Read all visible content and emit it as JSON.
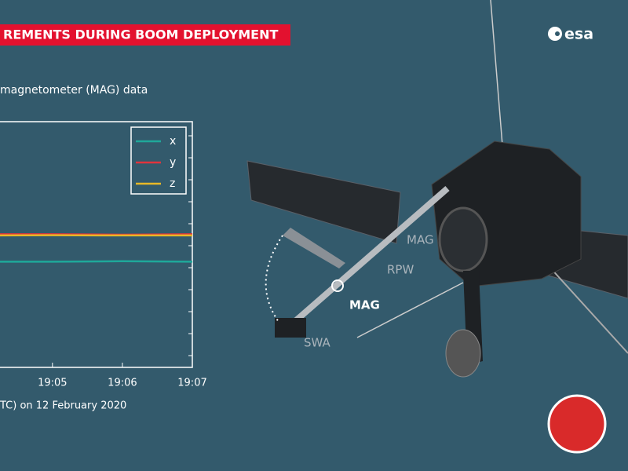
{
  "chart_data": {
    "type": "line",
    "title": "REMENTS DURING BOOM DEPLOYMENT",
    "subtitle": "magnetometer (MAG) data",
    "x_label": "TC) on 12 February 2020",
    "x": [
      4.25,
      5,
      6,
      7
    ],
    "xlim": [
      4.25,
      7
    ],
    "xticks": [
      {
        "value": 5,
        "label": "19:05"
      },
      {
        "value": 6,
        "label": "19:06"
      },
      {
        "value": 7,
        "label": "19:07"
      }
    ],
    "ylim": [
      0,
      10
    ],
    "series": [
      {
        "name": "x",
        "color": "#1fa89a",
        "values": [
          4.3,
          4.3,
          4.32,
          4.3
        ]
      },
      {
        "name": "y",
        "color": "#e0343c",
        "values": [
          5.42,
          5.42,
          5.4,
          5.42
        ]
      },
      {
        "name": "z",
        "color": "#e8b827",
        "values": [
          5.37,
          5.38,
          5.37,
          5.37
        ]
      }
    ],
    "legend": "upper right"
  },
  "logo": "esa",
  "labels": {
    "mag_upper": "MAG",
    "rpw": "RPW",
    "mag_boom": "MAG",
    "swa": "SWA"
  }
}
